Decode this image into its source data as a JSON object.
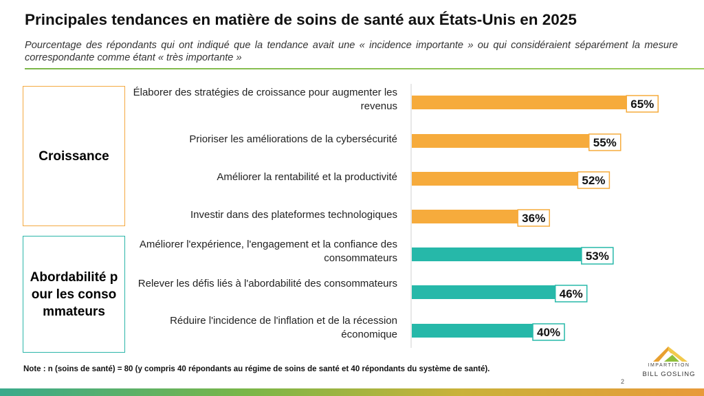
{
  "header": {
    "title": "Principales tendances en matière de soins de santé aux États-Unis en 2025",
    "subtitle": "Pourcentage des répondants qui ont indiqué que la tendance avait une « incidence importante » ou qui considéraient séparément la mesure correspondante comme étant « très importante »"
  },
  "groups": {
    "growth": "Croissance",
    "affordability": "Abordabilité pour les consommateurs"
  },
  "chart_data": {
    "type": "bar",
    "orientation": "horizontal",
    "title": "Principales tendances en matière de soins de santé aux États-Unis en 2025",
    "categories": [
      "Élaborer des stratégies de croissance pour augmenter les revenus",
      "Prioriser les améliorations de la cybersécurité",
      "Améliorer la rentabilité et la productivité",
      "Investir dans des plateformes technologiques",
      "Améliorer l'expérience, l'engagement et la confiance des consommateurs",
      "Relever les défis liés à l'abordabilité des consommateurs",
      "Réduire l'incidence de l'inflation et de la récession économique"
    ],
    "values": [
      65,
      55,
      52,
      36,
      53,
      46,
      40
    ],
    "value_labels": [
      "65%",
      "55%",
      "52%",
      "36%",
      "53%",
      "46%",
      "40%"
    ],
    "groups": [
      "Croissance",
      "Croissance",
      "Croissance",
      "Croissance",
      "Abordabilité pour les consommateurs",
      "Abordabilité pour les consommateurs",
      "Abordabilité pour les consommateurs"
    ],
    "colors": {
      "Croissance": "#f6ab3c",
      "Abordabilité pour les consommateurs": "#26b8a9"
    },
    "xlim": [
      0,
      100
    ],
    "grid": false,
    "legend": "none"
  },
  "footer": {
    "note": "Note : n (soins de santé) = 80 (y compris 40 répondants au régime de soins de santé et 40 répondants du système de santé).",
    "page_number": "2",
    "logo_line1": "IMPARTITION",
    "logo_line2": "BILL GOSLING"
  }
}
